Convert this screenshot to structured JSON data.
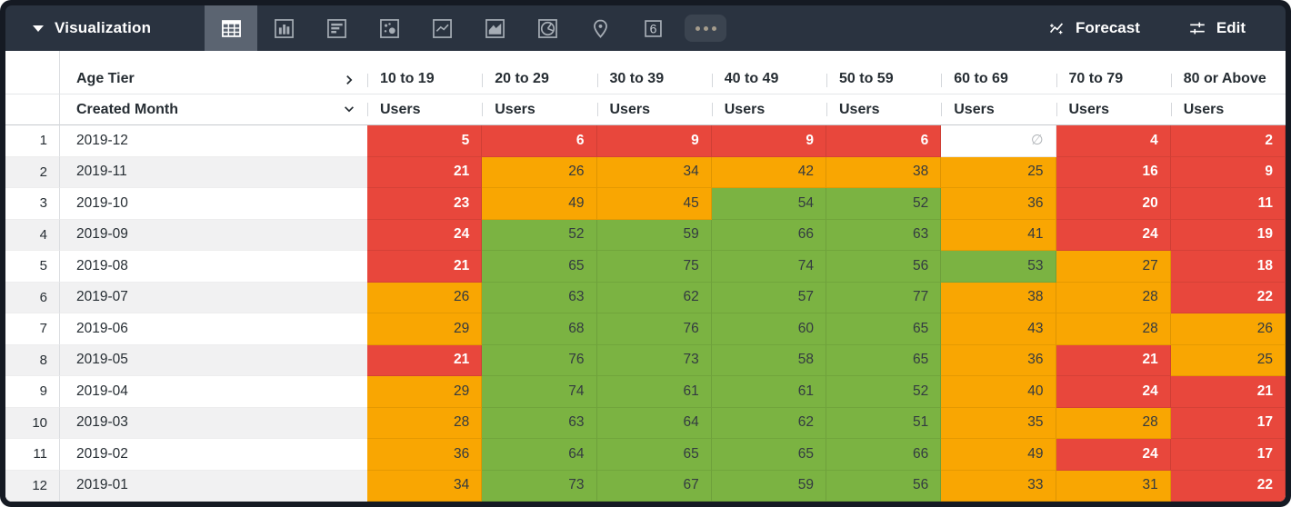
{
  "toolbar": {
    "title": "Visualization",
    "viz_types": [
      "table",
      "bar",
      "horizontal-bar",
      "scatter",
      "line",
      "area",
      "pie",
      "map",
      "single-value",
      "more"
    ],
    "selected_viz": "table",
    "single_value_glyph": "6",
    "forecast_label": "Forecast",
    "edit_label": "Edit"
  },
  "pivot": {
    "pivot_field": "Age Tier",
    "row_field": "Created Month",
    "measure_label": "Users",
    "columns": [
      "10 to 19",
      "20 to 29",
      "30 to 39",
      "40 to 49",
      "50 to 59",
      "60 to 69",
      "70 to 79",
      "80 or Above"
    ]
  },
  "null_symbol": "∅",
  "colors": {
    "red": "#E8473C",
    "orange": "#F9A602",
    "green": "#7BB342",
    "null": "#FFFFFF",
    "toolbar_bg": "#2A3340",
    "selected_slot_bg": "#5B6471"
  },
  "rows": [
    {
      "index": "1",
      "month": "2019-12",
      "cells": [
        {
          "v": "5",
          "c": "red"
        },
        {
          "v": "6",
          "c": "red"
        },
        {
          "v": "9",
          "c": "red"
        },
        {
          "v": "9",
          "c": "red"
        },
        {
          "v": "6",
          "c": "red"
        },
        {
          "v": "∅",
          "c": "null"
        },
        {
          "v": "4",
          "c": "red"
        },
        {
          "v": "2",
          "c": "red"
        }
      ]
    },
    {
      "index": "2",
      "month": "2019-11",
      "cells": [
        {
          "v": "21",
          "c": "red"
        },
        {
          "v": "26",
          "c": "orange"
        },
        {
          "v": "34",
          "c": "orange"
        },
        {
          "v": "42",
          "c": "orange"
        },
        {
          "v": "38",
          "c": "orange"
        },
        {
          "v": "25",
          "c": "orange"
        },
        {
          "v": "16",
          "c": "red"
        },
        {
          "v": "9",
          "c": "red"
        }
      ]
    },
    {
      "index": "3",
      "month": "2019-10",
      "cells": [
        {
          "v": "23",
          "c": "red"
        },
        {
          "v": "49",
          "c": "orange"
        },
        {
          "v": "45",
          "c": "orange"
        },
        {
          "v": "54",
          "c": "green"
        },
        {
          "v": "52",
          "c": "green"
        },
        {
          "v": "36",
          "c": "orange"
        },
        {
          "v": "20",
          "c": "red"
        },
        {
          "v": "11",
          "c": "red"
        }
      ]
    },
    {
      "index": "4",
      "month": "2019-09",
      "cells": [
        {
          "v": "24",
          "c": "red"
        },
        {
          "v": "52",
          "c": "green"
        },
        {
          "v": "59",
          "c": "green"
        },
        {
          "v": "66",
          "c": "green"
        },
        {
          "v": "63",
          "c": "green"
        },
        {
          "v": "41",
          "c": "orange"
        },
        {
          "v": "24",
          "c": "red"
        },
        {
          "v": "19",
          "c": "red"
        }
      ]
    },
    {
      "index": "5",
      "month": "2019-08",
      "cells": [
        {
          "v": "21",
          "c": "red"
        },
        {
          "v": "65",
          "c": "green"
        },
        {
          "v": "75",
          "c": "green"
        },
        {
          "v": "74",
          "c": "green"
        },
        {
          "v": "56",
          "c": "green"
        },
        {
          "v": "53",
          "c": "green"
        },
        {
          "v": "27",
          "c": "orange"
        },
        {
          "v": "18",
          "c": "red"
        }
      ]
    },
    {
      "index": "6",
      "month": "2019-07",
      "cells": [
        {
          "v": "26",
          "c": "orange"
        },
        {
          "v": "63",
          "c": "green"
        },
        {
          "v": "62",
          "c": "green"
        },
        {
          "v": "57",
          "c": "green"
        },
        {
          "v": "77",
          "c": "green"
        },
        {
          "v": "38",
          "c": "orange"
        },
        {
          "v": "28",
          "c": "orange"
        },
        {
          "v": "22",
          "c": "red"
        }
      ]
    },
    {
      "index": "7",
      "month": "2019-06",
      "cells": [
        {
          "v": "29",
          "c": "orange"
        },
        {
          "v": "68",
          "c": "green"
        },
        {
          "v": "76",
          "c": "green"
        },
        {
          "v": "60",
          "c": "green"
        },
        {
          "v": "65",
          "c": "green"
        },
        {
          "v": "43",
          "c": "orange"
        },
        {
          "v": "28",
          "c": "orange"
        },
        {
          "v": "26",
          "c": "orange"
        }
      ]
    },
    {
      "index": "8",
      "month": "2019-05",
      "cells": [
        {
          "v": "21",
          "c": "red"
        },
        {
          "v": "76",
          "c": "green"
        },
        {
          "v": "73",
          "c": "green"
        },
        {
          "v": "58",
          "c": "green"
        },
        {
          "v": "65",
          "c": "green"
        },
        {
          "v": "36",
          "c": "orange"
        },
        {
          "v": "21",
          "c": "red"
        },
        {
          "v": "25",
          "c": "orange"
        }
      ]
    },
    {
      "index": "9",
      "month": "2019-04",
      "cells": [
        {
          "v": "29",
          "c": "orange"
        },
        {
          "v": "74",
          "c": "green"
        },
        {
          "v": "61",
          "c": "green"
        },
        {
          "v": "61",
          "c": "green"
        },
        {
          "v": "52",
          "c": "green"
        },
        {
          "v": "40",
          "c": "orange"
        },
        {
          "v": "24",
          "c": "red"
        },
        {
          "v": "21",
          "c": "red"
        }
      ]
    },
    {
      "index": "10",
      "month": "2019-03",
      "cells": [
        {
          "v": "28",
          "c": "orange"
        },
        {
          "v": "63",
          "c": "green"
        },
        {
          "v": "64",
          "c": "green"
        },
        {
          "v": "62",
          "c": "green"
        },
        {
          "v": "51",
          "c": "green"
        },
        {
          "v": "35",
          "c": "orange"
        },
        {
          "v": "28",
          "c": "orange"
        },
        {
          "v": "17",
          "c": "red"
        }
      ]
    },
    {
      "index": "11",
      "month": "2019-02",
      "cells": [
        {
          "v": "36",
          "c": "orange"
        },
        {
          "v": "64",
          "c": "green"
        },
        {
          "v": "65",
          "c": "green"
        },
        {
          "v": "65",
          "c": "green"
        },
        {
          "v": "66",
          "c": "green"
        },
        {
          "v": "49",
          "c": "orange"
        },
        {
          "v": "24",
          "c": "red"
        },
        {
          "v": "17",
          "c": "red"
        }
      ]
    },
    {
      "index": "12",
      "month": "2019-01",
      "cells": [
        {
          "v": "34",
          "c": "orange"
        },
        {
          "v": "73",
          "c": "green"
        },
        {
          "v": "67",
          "c": "green"
        },
        {
          "v": "59",
          "c": "green"
        },
        {
          "v": "56",
          "c": "green"
        },
        {
          "v": "33",
          "c": "orange"
        },
        {
          "v": "31",
          "c": "orange"
        },
        {
          "v": "22",
          "c": "red"
        }
      ]
    }
  ]
}
